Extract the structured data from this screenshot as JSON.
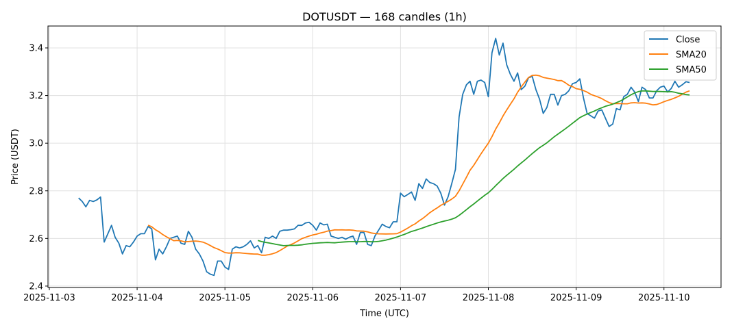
{
  "chart_data": {
    "type": "line",
    "title": "DOTUSDT — 168 candles (1h)",
    "xlabel": "Time (UTC)",
    "ylabel": "Price (USDT)",
    "x_start": "2025-11-03T08:00:00Z",
    "interval_hours": 1,
    "xlim": [
      "2025-11-02T23:38:00Z",
      "2025-11-10T15:36:00Z"
    ],
    "ylim": [
      2.394,
      3.492
    ],
    "x_ticks": [
      "2025-11-03",
      "2025-11-04",
      "2025-11-05",
      "2025-11-06",
      "2025-11-07",
      "2025-11-08",
      "2025-11-09",
      "2025-11-10"
    ],
    "y_ticks": [
      "2.4",
      "2.6",
      "2.8",
      "3.0",
      "3.2",
      "3.4"
    ],
    "grid": true,
    "legend_position": "top-right",
    "series": [
      {
        "name": "Close",
        "color": "#1f77b4",
        "values": [
          2.77,
          2.755,
          2.733,
          2.76,
          2.755,
          2.762,
          2.774,
          2.585,
          2.62,
          2.655,
          2.605,
          2.58,
          2.535,
          2.57,
          2.565,
          2.585,
          2.61,
          2.62,
          2.62,
          2.65,
          2.64,
          2.51,
          2.555,
          2.535,
          2.565,
          2.6,
          2.605,
          2.61,
          2.58,
          2.575,
          2.63,
          2.605,
          2.555,
          2.535,
          2.505,
          2.46,
          2.45,
          2.445,
          2.505,
          2.505,
          2.48,
          2.47,
          2.555,
          2.565,
          2.56,
          2.565,
          2.575,
          2.59,
          2.56,
          2.57,
          2.54,
          2.605,
          2.6,
          2.61,
          2.6,
          2.63,
          2.635,
          2.635,
          2.637,
          2.64,
          2.655,
          2.655,
          2.665,
          2.668,
          2.655,
          2.635,
          2.665,
          2.657,
          2.66,
          2.61,
          2.605,
          2.6,
          2.605,
          2.597,
          2.605,
          2.61,
          2.575,
          2.625,
          2.625,
          2.575,
          2.57,
          2.61,
          2.635,
          2.66,
          2.65,
          2.645,
          2.67,
          2.67,
          2.79,
          2.775,
          2.785,
          2.795,
          2.76,
          2.83,
          2.81,
          2.85,
          2.835,
          2.83,
          2.82,
          2.79,
          2.74,
          2.775,
          2.83,
          2.89,
          3.11,
          3.205,
          3.245,
          3.26,
          3.205,
          3.26,
          3.265,
          3.255,
          3.195,
          3.38,
          3.44,
          3.37,
          3.42,
          3.33,
          3.29,
          3.26,
          3.295,
          3.225,
          3.24,
          3.275,
          3.28,
          3.225,
          3.185,
          3.125,
          3.15,
          3.205,
          3.205,
          3.16,
          3.2,
          3.205,
          3.22,
          3.25,
          3.255,
          3.27,
          3.19,
          3.125,
          3.115,
          3.105,
          3.135,
          3.14,
          3.105,
          3.07,
          3.08,
          3.145,
          3.14,
          3.195,
          3.205,
          3.235,
          3.215,
          3.175,
          3.235,
          3.225,
          3.19,
          3.19,
          3.22,
          3.235,
          3.24,
          3.215,
          3.23,
          3.26,
          3.235,
          3.245,
          3.258,
          3.255
        ]
      },
      {
        "name": "SMA20",
        "color": "#ff7f0e",
        "window": 20
      },
      {
        "name": "SMA50",
        "color": "#2ca02c",
        "window": 50
      }
    ]
  }
}
